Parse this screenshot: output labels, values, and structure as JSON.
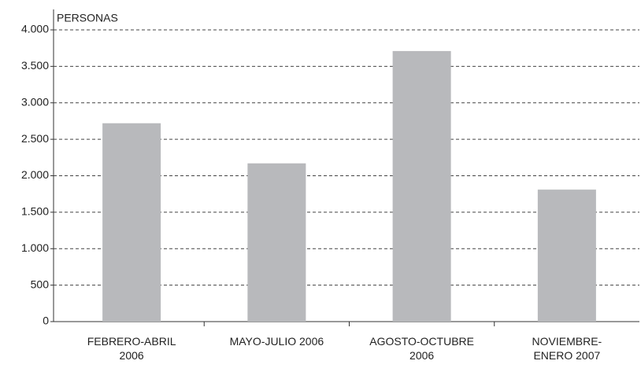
{
  "chart_data": {
    "type": "bar",
    "y_label": "PERSONAS",
    "categories": [
      "FEBRERO-ABRIL\n2006",
      "MAYO-JULIO 2006",
      "AGOSTO-OCTUBRE\n2006",
      "NOVIEMBRE-\nENERO 2007"
    ],
    "values": [
      2720,
      2170,
      3710,
      1810
    ],
    "color": "#b8b9bc",
    "ylim": [
      0,
      4000
    ],
    "yticks": [
      0,
      500,
      {
        "value": 1000,
        "label": "1.000"
      },
      {
        "value": 1500,
        "label": "1.500"
      },
      {
        "value": 2000,
        "label": "2.000"
      },
      {
        "value": 2500,
        "label": "2.500"
      },
      {
        "value": 3000,
        "label": "3.000"
      },
      {
        "value": 3500,
        "label": "3.500"
      },
      {
        "value": 4000,
        "label": "4.000"
      }
    ],
    "grid": true
  }
}
